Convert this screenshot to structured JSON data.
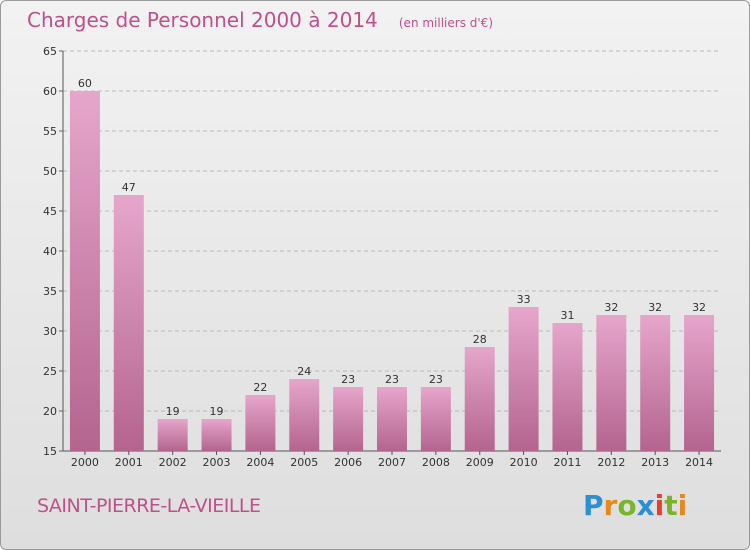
{
  "title": "Charges de Personnel 2000 à 2014",
  "subtitle": "(en milliers d'€)",
  "commune": "SAINT-PIERRE-LA-VIEILLE",
  "logo": {
    "letters": [
      "P",
      "r",
      "o",
      "x",
      "i",
      "t",
      "i"
    ],
    "colors": [
      "#2a8fd6",
      "#e8891d",
      "#79b52a",
      "#2a8fd6",
      "#e83e2e",
      "#79b52a",
      "#e8891d"
    ]
  },
  "colors": {
    "accent": "#c0508a",
    "bar_top": "#e6a6cc",
    "bar_bottom": "#b3648f"
  },
  "chart_data": {
    "type": "bar",
    "categories": [
      "2000",
      "2001",
      "2002",
      "2003",
      "2004",
      "2005",
      "2006",
      "2007",
      "2008",
      "2009",
      "2010",
      "2011",
      "2012",
      "2013",
      "2014"
    ],
    "values": [
      60,
      47,
      19,
      19,
      22,
      24,
      23,
      23,
      23,
      28,
      33,
      31,
      32,
      32,
      32
    ],
    "ylim": [
      15,
      65
    ],
    "yticks": [
      15,
      20,
      25,
      30,
      35,
      40,
      45,
      50,
      55,
      60,
      65
    ],
    "grid": true
  }
}
